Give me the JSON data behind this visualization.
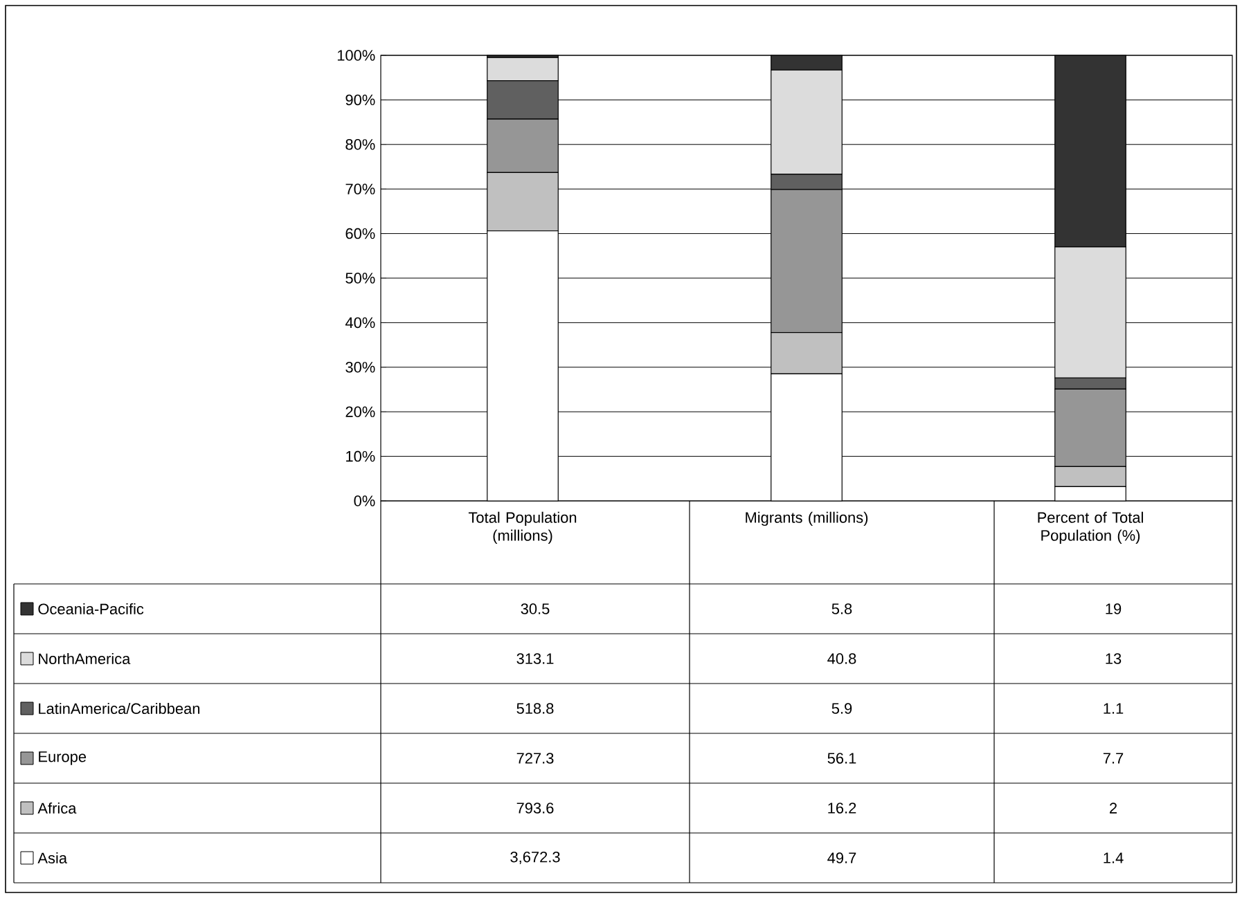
{
  "chart_data": {
    "type": "bar",
    "stacked": true,
    "grid": "y",
    "legend": "bottom",
    "categories": [
      "Total Population (millions)",
      "Migrants (millions)",
      "Percent of Total Population (%)"
    ],
    "ylim": [
      0,
      100
    ],
    "annotations": [
      "30.5",
      "5.8",
      "19",
      "313.1",
      "40.8",
      "13",
      "518.8",
      "5.9",
      "1.1",
      "727.3",
      "56.1",
      "7.7",
      "793.6",
      "16.2",
      "2",
      "3,672.3",
      "49.7",
      "1.4"
    ],
    "yticks": [
      {
        "value": 0,
        "label": "0%"
      },
      {
        "value": 10,
        "label": "10%"
      },
      {
        "value": 20,
        "label": "20%"
      },
      {
        "value": 30,
        "label": "30%"
      },
      {
        "value": 40,
        "label": "40%"
      },
      {
        "value": 50,
        "label": "50%"
      },
      {
        "value": 60,
        "label": "60%"
      },
      {
        "value": 70,
        "label": "70%"
      },
      {
        "value": 80,
        "label": "80%"
      },
      {
        "value": 90,
        "label": "90%"
      },
      {
        "value": 100,
        "label": "100%"
      }
    ],
    "series": [
      {
        "name": "Asia",
        "color": "#ffffff",
        "values": [
          60.6,
          28.5,
          3.2
        ]
      },
      {
        "name": "Africa",
        "color": "#c0c0c0",
        "values": [
          13.1,
          9.3,
          4.5
        ]
      },
      {
        "name": "Europe",
        "color": "#969696",
        "values": [
          12.0,
          32.1,
          17.4
        ]
      },
      {
        "name": "LatinAmerica/Caribbean",
        "color": "#606060",
        "values": [
          8.6,
          3.4,
          2.5
        ]
      },
      {
        "name": "NorthAmerica",
        "color": "#dcdcdc",
        "values": [
          5.2,
          23.4,
          29.4
        ]
      },
      {
        "name": "Oceania-Pacific",
        "color": "#333333",
        "values": [
          0.5,
          3.3,
          43.0
        ]
      }
    ]
  }
}
